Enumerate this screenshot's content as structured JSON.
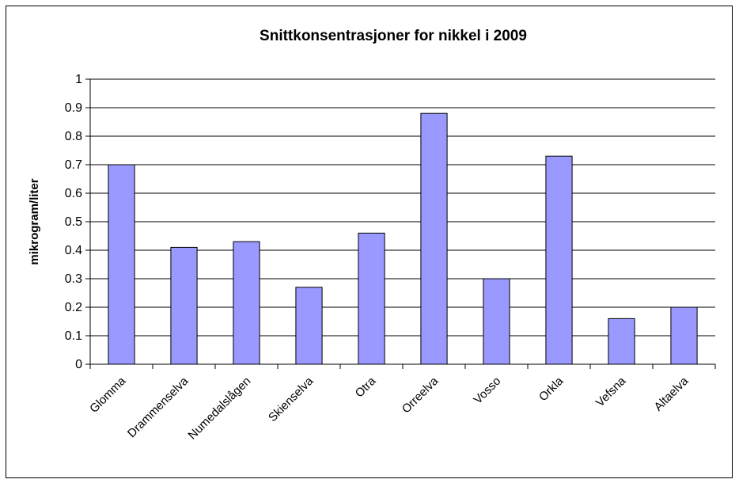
{
  "chart_data": {
    "type": "bar",
    "title": "Snittkonsentrasjoner for nikkel i 2009",
    "xlabel": "",
    "ylabel": "mikrogram/liter",
    "categories": [
      "Glomma",
      "Drammenselva",
      "Numedalslågen",
      "Skienselva",
      "Otra",
      "Orreelva",
      "Vosso",
      "Orkla",
      "Vefsna",
      "Altaelva"
    ],
    "values": [
      0.7,
      0.41,
      0.43,
      0.27,
      0.46,
      0.88,
      0.3,
      0.73,
      0.16,
      0.2
    ],
    "ylim": [
      0,
      1
    ],
    "yticks": [
      "0",
      "0.1",
      "0.2",
      "0.3",
      "0.4",
      "0.5",
      "0.6",
      "0.7",
      "0.8",
      "0.9",
      "1"
    ],
    "grid": true,
    "legend": "none",
    "colors": {
      "bar_fill": "#9999ff",
      "bar_stroke": "#000000",
      "grid": "#000000"
    }
  }
}
